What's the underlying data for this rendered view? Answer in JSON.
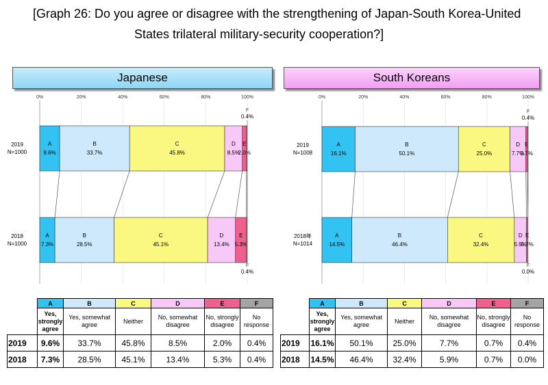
{
  "title_line1": "[Graph 26: Do you agree or disagree with the strengthening of Japan-South Korea-United",
  "title_line2": "States trilateral military-security cooperation?]",
  "colors": {
    "A": "#33c3f3",
    "B": "#cde9fb",
    "C": "#fbf882",
    "D": "#f8c8f8",
    "E": "#f0608e",
    "F": "#a4a4a4"
  },
  "chart_data": [
    {
      "type": "bar",
      "orientation": "horizontal",
      "stacked": true,
      "title": "Japanese",
      "xlim": [
        0,
        100
      ],
      "x_ticks": [
        "0%",
        "20%",
        "40%",
        "60%",
        "80%",
        "100%"
      ],
      "categories": [
        "2019\nN=1000",
        "2018\nN=1000"
      ],
      "series": [
        {
          "name": "A",
          "values": [
            9.6,
            7.3
          ]
        },
        {
          "name": "B",
          "values": [
            33.7,
            28.5
          ]
        },
        {
          "name": "C",
          "values": [
            45.8,
            45.1
          ]
        },
        {
          "name": "D",
          "values": [
            8.5,
            13.4
          ]
        },
        {
          "name": "E",
          "values": [
            2.0,
            5.3
          ]
        },
        {
          "name": "F",
          "values": [
            0.4,
            0.4
          ]
        }
      ],
      "bars": [
        {
          "year": "2019",
          "n": "N=1000",
          "labels": {
            "A": "9.6%",
            "B": "33.7%",
            "C": "45.8%",
            "D": "8.5%",
            "E": "2.0%",
            "F": "0.4%"
          }
        },
        {
          "year": "2018",
          "n": "N=1000",
          "labels": {
            "A": "7.3%",
            "B": "28.5%",
            "C": "45.1%",
            "D": "13.4%",
            "E": "5.3%",
            "F": "0.4%"
          }
        }
      ]
    },
    {
      "type": "bar",
      "orientation": "horizontal",
      "stacked": true,
      "title": "South Koreans",
      "xlim": [
        0,
        100
      ],
      "x_ticks": [
        "0%",
        "20%",
        "40%",
        "60%",
        "80%",
        "100%"
      ],
      "categories": [
        "2019\nN=1008",
        "2018年\nN=1014"
      ],
      "series": [
        {
          "name": "A",
          "values": [
            16.1,
            14.5
          ]
        },
        {
          "name": "B",
          "values": [
            50.1,
            46.4
          ]
        },
        {
          "name": "C",
          "values": [
            25.0,
            32.4
          ]
        },
        {
          "name": "D",
          "values": [
            7.7,
            5.9
          ]
        },
        {
          "name": "E",
          "values": [
            0.7,
            0.7
          ]
        },
        {
          "name": "F",
          "values": [
            0.4,
            0.0
          ]
        }
      ],
      "bars": [
        {
          "year": "2019",
          "n": "N=1008",
          "labels": {
            "A": "16.1%",
            "B": "50.1%",
            "C": "25.0%",
            "D": "7.7%",
            "E": "0.7%",
            "F": "0.4%"
          }
        },
        {
          "year": "2018年",
          "n": "N=1014",
          "labels": {
            "A": "14.5%",
            "B": "46.4%",
            "C": "32.4%",
            "D": "5.9%",
            "E": "0.7%",
            "F": "0.0%"
          }
        }
      ]
    }
  ],
  "legend_table": {
    "codes": [
      "A",
      "B",
      "C",
      "D",
      "E",
      "F"
    ],
    "answers": [
      "Yes, strongly agree",
      "Yes, somewhat agree",
      "Neither",
      "No, somewhat disagree",
      "No, strongly disagree",
      "No response"
    ],
    "japanese_rows": [
      {
        "year": "2019",
        "values": [
          "9.6%",
          "33.7%",
          "45.8%",
          "8.5%",
          "2.0%",
          "0.4%"
        ]
      },
      {
        "year": "2018",
        "values": [
          "7.3%",
          "28.5%",
          "45.1%",
          "13.4%",
          "5.3%",
          "0.4%"
        ]
      }
    ],
    "korean_rows": [
      {
        "year": "2019",
        "values": [
          "16.1%",
          "50.1%",
          "25.0%",
          "7.7%",
          "0.7%",
          "0.4%"
        ]
      },
      {
        "year": "2018",
        "values": [
          "14.5%",
          "46.4%",
          "32.4%",
          "5.9%",
          "0.7%",
          "0.0%"
        ]
      }
    ]
  }
}
